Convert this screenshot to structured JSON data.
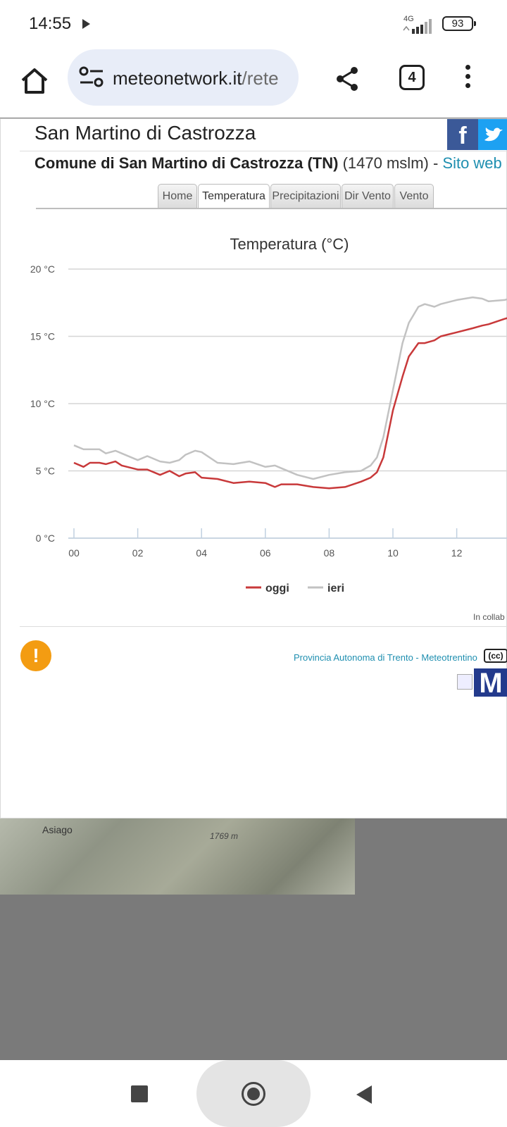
{
  "status": {
    "time": "14:55",
    "network": "4G",
    "battery": "93"
  },
  "browser": {
    "url_host": "meteonetwork.it",
    "url_tail": "/rete",
    "tab_count": "4"
  },
  "station": {
    "title": "San Martino di Castrozza",
    "commune": "Comune di San Martino di Castrozza (TN)",
    "altitude": "(1470 mslm) - ",
    "website_label": "Sito web"
  },
  "tabs": [
    "Home",
    "Temperatura",
    "Precipitazioni",
    "Dir Vento",
    "Vento"
  ],
  "active_tab": "Temperatura",
  "chart_data": {
    "type": "line",
    "title": "Temperatura (°C)",
    "yaxis": {
      "min": 0,
      "max": 20,
      "ticks": [
        0,
        5,
        10,
        15,
        20
      ],
      "tick_labels": [
        "0 °C",
        "5 °C",
        "10 °C",
        "15 °C",
        "20 °C"
      ]
    },
    "xaxis": {
      "min": 0,
      "max": 13.8,
      "ticks": [
        0,
        2,
        4,
        6,
        8,
        10,
        12
      ],
      "tick_labels": [
        "00",
        "02",
        "04",
        "06",
        "08",
        "10",
        "12"
      ]
    },
    "grid": true,
    "legend_position": "bottom-center",
    "series": [
      {
        "name": "oggi",
        "color": "#c8393a",
        "x": [
          0,
          0.3,
          0.5,
          0.8,
          1,
          1.3,
          1.5,
          2,
          2.3,
          2.7,
          3,
          3.3,
          3.5,
          3.8,
          4,
          4.5,
          5,
          5.5,
          6,
          6.3,
          6.5,
          7,
          7.5,
          8,
          8.5,
          9,
          9.3,
          9.5,
          9.7,
          10,
          10.3,
          10.5,
          10.8,
          11,
          11.3,
          11.5,
          12,
          12.5,
          12.8,
          13,
          13.5,
          13.8
        ],
        "y": [
          5.6,
          5.3,
          5.6,
          5.6,
          5.5,
          5.7,
          5.4,
          5.1,
          5.1,
          4.7,
          5.0,
          4.6,
          4.8,
          4.9,
          4.5,
          4.4,
          4.1,
          4.2,
          4.1,
          3.8,
          4.0,
          4.0,
          3.8,
          3.7,
          3.8,
          4.2,
          4.5,
          4.9,
          6.0,
          9.5,
          12.0,
          13.5,
          14.5,
          14.5,
          14.7,
          15.0,
          15.3,
          15.6,
          15.8,
          15.9,
          16.3,
          16.5
        ]
      },
      {
        "name": "ieri",
        "color": "#c2c2c2",
        "x": [
          0,
          0.3,
          0.5,
          0.8,
          1,
          1.3,
          1.5,
          2,
          2.3,
          2.7,
          3,
          3.3,
          3.5,
          3.8,
          4,
          4.5,
          5,
          5.5,
          6,
          6.3,
          6.5,
          7,
          7.5,
          8,
          8.5,
          9,
          9.3,
          9.5,
          9.7,
          10,
          10.3,
          10.5,
          10.8,
          11,
          11.3,
          11.5,
          12,
          12.5,
          12.8,
          13,
          13.5,
          13.8
        ],
        "y": [
          6.9,
          6.6,
          6.6,
          6.6,
          6.3,
          6.5,
          6.3,
          5.8,
          6.1,
          5.7,
          5.6,
          5.8,
          6.2,
          6.5,
          6.4,
          5.6,
          5.5,
          5.7,
          5.3,
          5.4,
          5.2,
          4.7,
          4.4,
          4.7,
          4.9,
          5.0,
          5.4,
          6.0,
          7.5,
          11.0,
          14.5,
          16.0,
          17.2,
          17.4,
          17.2,
          17.4,
          17.7,
          17.9,
          17.8,
          17.6,
          17.7,
          17.9
        ]
      }
    ]
  },
  "footer": {
    "collab": "In collab",
    "credit": "Provincia Autonoma di Trento - Meteotrentino",
    "cc": "(cc)",
    "logo": "M"
  },
  "map": {
    "town": "Asiago",
    "peak": "1769 m"
  },
  "icons": {
    "home": "home-icon",
    "tune": "tune-icon",
    "share": "share-icon",
    "menu": "more-vert-icon",
    "facebook": "facebook-icon",
    "twitter": "twitter-icon",
    "alert": "alert-icon"
  }
}
